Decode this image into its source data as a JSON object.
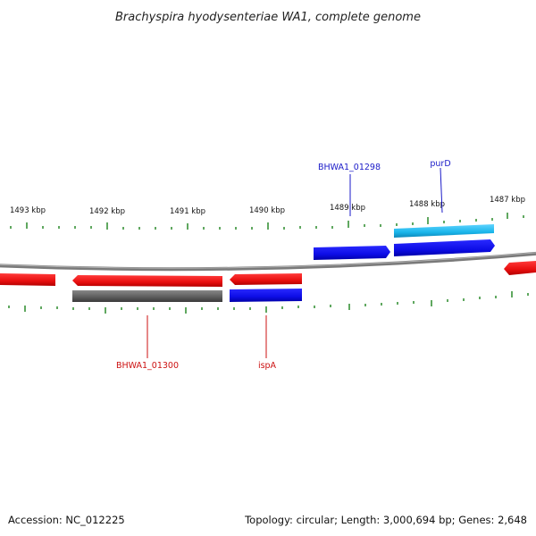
{
  "title": "Brachyspira hyodysenteriae WA1, complete genome",
  "footer": {
    "accession": "Accession: NC_012225",
    "summary": "Topology: circular; Length: 3,000,694 bp; Genes: 2,648"
  },
  "scale": {
    "ticks": [
      "1493 kbp",
      "1492 kbp",
      "1491 kbp",
      "1490 kbp",
      "1489 kbp",
      "1488 kbp",
      "1487 kbp"
    ]
  },
  "genes": [
    {
      "name": "BHWA1_01298",
      "color": "#1a1ac8"
    },
    {
      "name": "purD",
      "color": "#1a1ac8"
    },
    {
      "name": "BHWA1_01300",
      "color": "#cc1111"
    },
    {
      "name": "ispA",
      "color": "#cc1111"
    }
  ],
  "colors": {
    "forward_strand": "#1010e8",
    "reverse_strand": "#ee1111",
    "rna": "#1ab8e8",
    "pseudo": "#555555",
    "backbone": "#777777",
    "ticks": "#2a8a2a"
  }
}
